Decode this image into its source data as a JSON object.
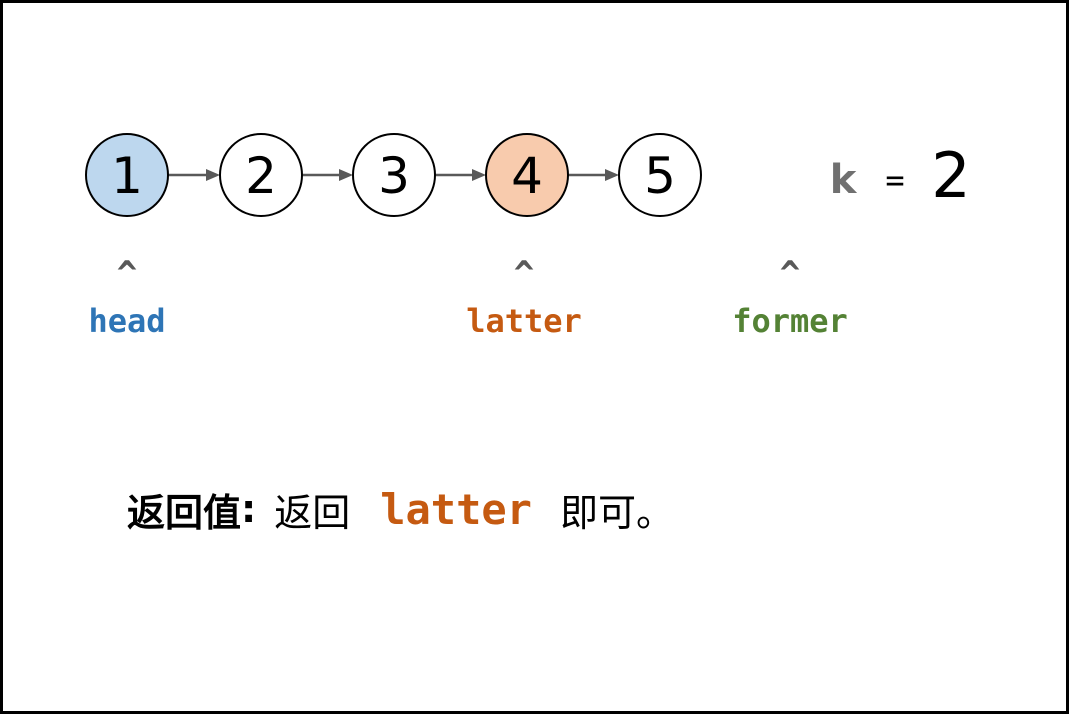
{
  "nodes": [
    {
      "value": "1",
      "fill": "#bdd7ee"
    },
    {
      "value": "2",
      "fill": "#ffffff"
    },
    {
      "value": "3",
      "fill": "#ffffff"
    },
    {
      "value": "4",
      "fill": "#f8cbad"
    },
    {
      "value": "5",
      "fill": "#ffffff"
    }
  ],
  "k_expression": {
    "variable": "k",
    "operator": "=",
    "value": "2"
  },
  "pointers": [
    {
      "caret": "^",
      "label": "head",
      "color": "#2e75b6"
    },
    {
      "caret": "^",
      "label": "latter",
      "color": "#c55a11"
    },
    {
      "caret": "^",
      "label": "former",
      "color": "#548235"
    }
  ],
  "return_statement": {
    "label": "返回值",
    "colon": ":",
    "prefix": "返回",
    "code": "latter",
    "suffix": "即可。"
  }
}
